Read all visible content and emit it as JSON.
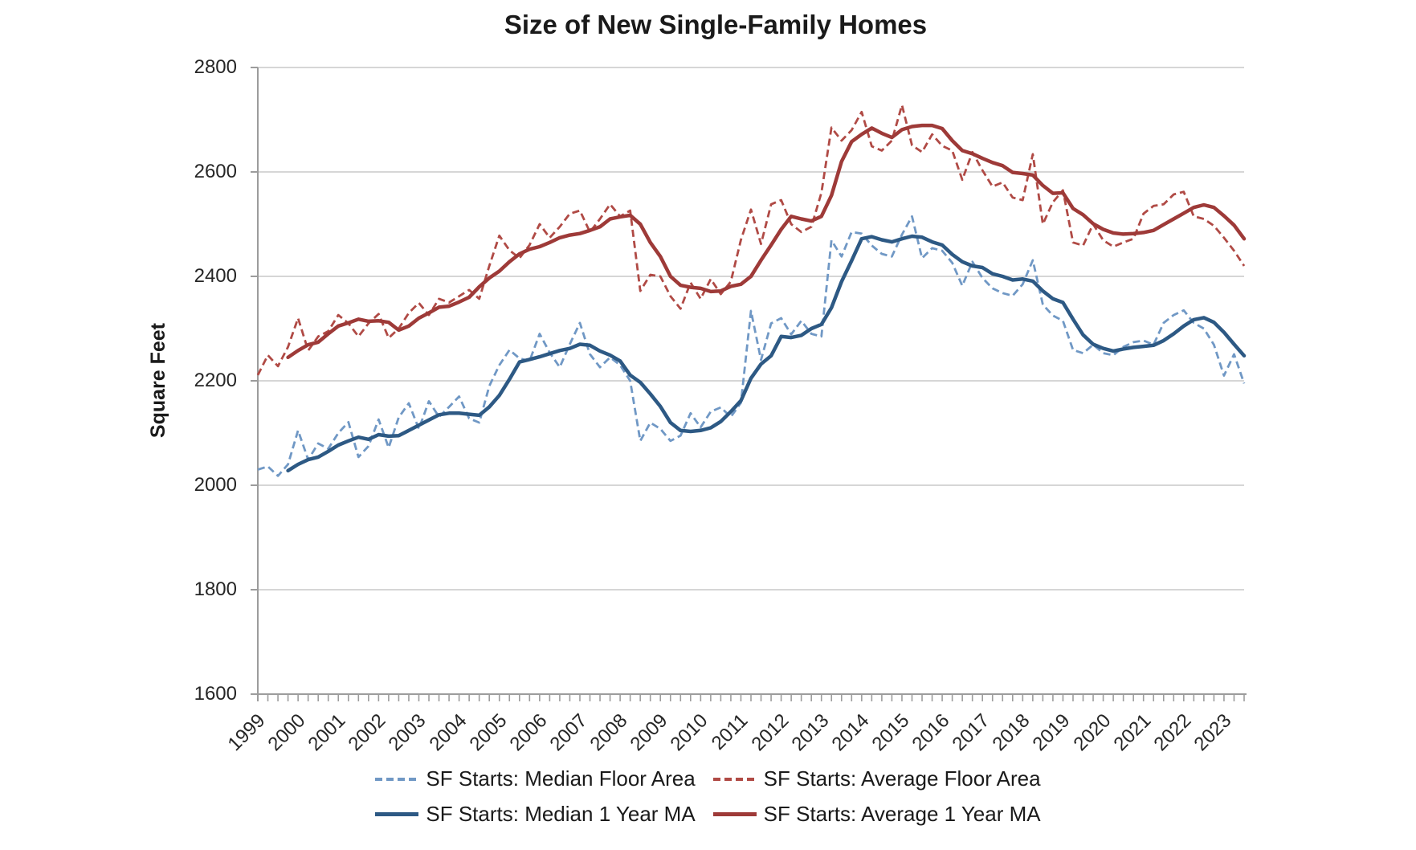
{
  "title": "Size of New Single-Family Homes",
  "y_axis_label": "Square Feet",
  "colors": {
    "median_dashed": "#7098c5",
    "average_dashed": "#b04a45",
    "median_ma": "#2d5984",
    "average_ma": "#9e3a38",
    "grid": "#c9c9c9",
    "axis": "#9c9c9c",
    "text": "#262626",
    "title_text": "#1a1a1a"
  },
  "chart_data": {
    "type": "line",
    "title": "Size of New Single-Family Homes",
    "xlabel": "",
    "ylabel": "Square Feet",
    "ylim": [
      1600,
      2800
    ],
    "ytick_step": 200,
    "y_ticks": [
      "1600",
      "1800",
      "2000",
      "2200",
      "2400",
      "2600",
      "2800"
    ],
    "x_tick_years": [
      "1999",
      "2000",
      "2001",
      "2002",
      "2003",
      "2004",
      "2005",
      "2006",
      "2007",
      "2008",
      "2009",
      "2010",
      "2011",
      "2012",
      "2013",
      "2014",
      "2015",
      "2016",
      "2017",
      "2018",
      "2019",
      "2020",
      "2021",
      "2022",
      "2023"
    ],
    "x_start": 1999.0,
    "x_step": 0.25,
    "x_end": 2023.5,
    "grid": "horizontal",
    "legend_position": "bottom",
    "units": "square feet, monthly series sampled quarterly",
    "series": [
      {
        "name": "SF Starts: Median Floor Area",
        "style": "dashed",
        "color": "#7098c5",
        "values": [
          2030,
          2036,
          2018,
          2040,
          2105,
          2049,
          2080,
          2070,
          2100,
          2121,
          2054,
          2075,
          2126,
          2072,
          2130,
          2157,
          2108,
          2161,
          2131,
          2150,
          2170,
          2128,
          2120,
          2190,
          2230,
          2259,
          2243,
          2238,
          2290,
          2254,
          2226,
          2270,
          2311,
          2251,
          2226,
          2245,
          2230,
          2200,
          2085,
          2120,
          2108,
          2085,
          2095,
          2138,
          2111,
          2141,
          2149,
          2131,
          2158,
          2334,
          2240,
          2310,
          2320,
          2289,
          2315,
          2290,
          2285,
          2469,
          2438,
          2485,
          2482,
          2459,
          2443,
          2438,
          2480,
          2515,
          2435,
          2454,
          2449,
          2426,
          2382,
          2428,
          2397,
          2377,
          2368,
          2363,
          2385,
          2431,
          2346,
          2325,
          2315,
          2259,
          2253,
          2269,
          2253,
          2249,
          2265,
          2274,
          2277,
          2269,
          2311,
          2326,
          2335,
          2311,
          2300,
          2269,
          2210,
          2251,
          2195
        ]
      },
      {
        "name": "SF Starts: Average Floor Area",
        "style": "dashed",
        "color": "#b04a45",
        "values": [
          2211,
          2249,
          2228,
          2265,
          2320,
          2258,
          2285,
          2295,
          2326,
          2310,
          2285,
          2310,
          2328,
          2282,
          2300,
          2330,
          2349,
          2326,
          2357,
          2350,
          2362,
          2374,
          2357,
          2420,
          2478,
          2450,
          2435,
          2460,
          2500,
          2474,
          2495,
          2520,
          2526,
          2485,
          2510,
          2538,
          2515,
          2526,
          2372,
          2403,
          2400,
          2362,
          2338,
          2388,
          2357,
          2395,
          2366,
          2390,
          2470,
          2528,
          2462,
          2538,
          2546,
          2500,
          2485,
          2495,
          2560,
          2685,
          2660,
          2680,
          2715,
          2649,
          2641,
          2660,
          2728,
          2651,
          2638,
          2672,
          2650,
          2641,
          2585,
          2638,
          2603,
          2572,
          2580,
          2551,
          2546,
          2634,
          2500,
          2542,
          2565,
          2465,
          2459,
          2500,
          2469,
          2457,
          2465,
          2472,
          2520,
          2535,
          2538,
          2557,
          2562,
          2515,
          2510,
          2497,
          2474,
          2449,
          2420
        ]
      },
      {
        "name": "SF Starts: Median 1 Year MA",
        "style": "solid",
        "color": "#2d5984",
        "values": [
          null,
          null,
          null,
          2028,
          2040,
          2049,
          2054,
          2065,
          2077,
          2085,
          2092,
          2088,
          2097,
          2094,
          2095,
          2105,
          2115,
          2125,
          2135,
          2138,
          2138,
          2136,
          2134,
          2150,
          2172,
          2203,
          2236,
          2241,
          2246,
          2252,
          2258,
          2262,
          2270,
          2268,
          2257,
          2249,
          2238,
          2211,
          2197,
          2175,
          2151,
          2120,
          2105,
          2103,
          2105,
          2110,
          2122,
          2141,
          2162,
          2205,
          2232,
          2248,
          2285,
          2283,
          2287,
          2300,
          2308,
          2340,
          2390,
          2430,
          2472,
          2476,
          2470,
          2466,
          2472,
          2477,
          2475,
          2466,
          2460,
          2442,
          2428,
          2420,
          2417,
          2405,
          2400,
          2393,
          2395,
          2391,
          2372,
          2357,
          2350,
          2318,
          2288,
          2270,
          2262,
          2257,
          2261,
          2264,
          2266,
          2268,
          2277,
          2290,
          2305,
          2317,
          2321,
          2312,
          2293,
          2270,
          2248
        ]
      },
      {
        "name": "SF Starts: Average 1 Year MA",
        "style": "solid",
        "color": "#9e3a38",
        "values": [
          null,
          null,
          null,
          2245,
          2258,
          2269,
          2274,
          2290,
          2305,
          2311,
          2318,
          2314,
          2315,
          2312,
          2297,
          2305,
          2320,
          2330,
          2341,
          2343,
          2351,
          2360,
          2380,
          2397,
          2410,
          2428,
          2443,
          2452,
          2457,
          2465,
          2474,
          2479,
          2482,
          2488,
          2495,
          2510,
          2514,
          2517,
          2500,
          2465,
          2438,
          2400,
          2383,
          2379,
          2377,
          2371,
          2372,
          2381,
          2385,
          2400,
          2431,
          2460,
          2490,
          2515,
          2510,
          2506,
          2515,
          2555,
          2620,
          2658,
          2672,
          2684,
          2674,
          2666,
          2681,
          2687,
          2689,
          2689,
          2683,
          2660,
          2641,
          2635,
          2626,
          2618,
          2612,
          2599,
          2597,
          2594,
          2574,
          2559,
          2560,
          2530,
          2518,
          2501,
          2490,
          2483,
          2481,
          2482,
          2484,
          2488,
          2499,
          2510,
          2521,
          2532,
          2537,
          2532,
          2516,
          2498,
          2472
        ]
      }
    ]
  },
  "legend": {
    "rows": [
      [
        0,
        1
      ],
      [
        2,
        3
      ]
    ]
  }
}
